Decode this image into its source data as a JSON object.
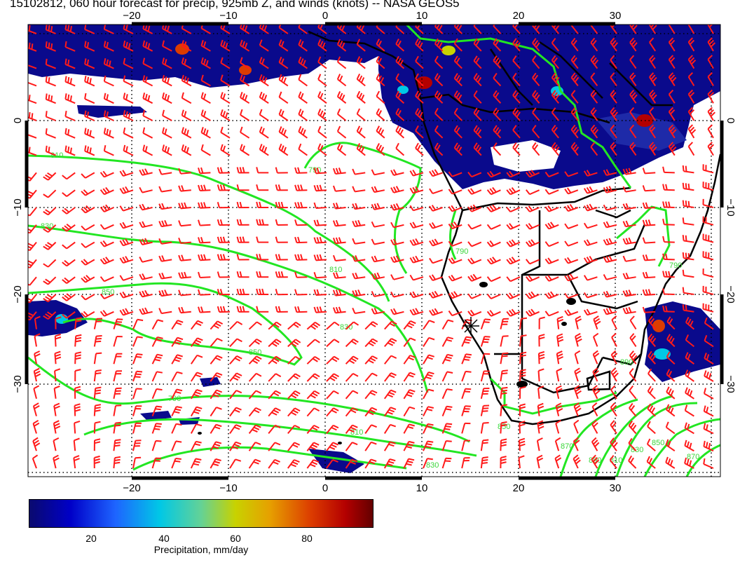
{
  "title": "15102812, 060 hour forecast for precip, 925mb Z, and winds (knots) -- NASA GEOS5",
  "map": {
    "lon_labels": [
      "−20",
      "−10",
      "0",
      "10",
      "20",
      "30"
    ],
    "lat_labels_left": [
      "0",
      "−10",
      "−20",
      "−30"
    ],
    "lat_labels_right": [
      "0",
      "−10",
      "−20",
      "−30"
    ],
    "contour_labels": [
      "810",
      "790",
      "830",
      "850",
      "850",
      "830",
      "810",
      "790",
      "790",
      "810",
      "830",
      "850",
      "870",
      "890",
      "810",
      "830",
      "850",
      "870",
      "890",
      "790"
    ],
    "colors": {
      "contour": "#22e622",
      "wind_barb": "#ff1a1a",
      "precip_dark": "#0a0a8c",
      "precip_light": "#1e64ff",
      "coastline": "#000000"
    }
  },
  "colorbar": {
    "ticks": [
      "20",
      "40",
      "60",
      "80"
    ],
    "label": "Precipitation, mm/day"
  }
}
